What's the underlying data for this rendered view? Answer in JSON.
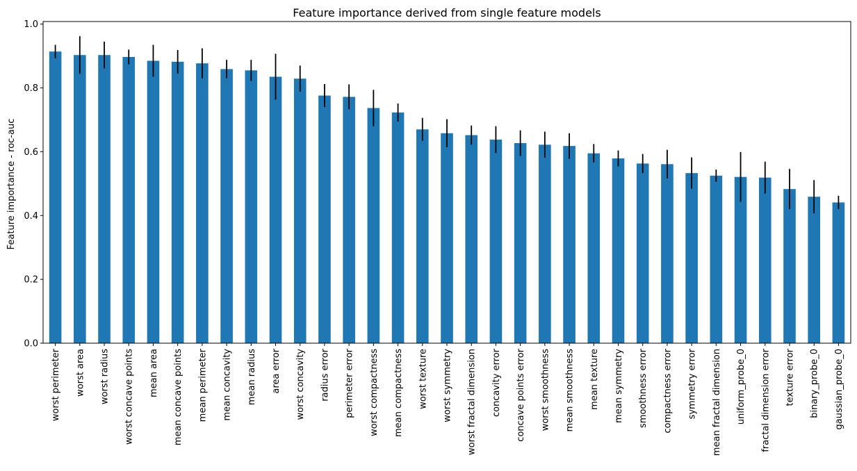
{
  "chart_data": {
    "type": "bar",
    "title": "Feature importance derived from single feature models",
    "xlabel": "",
    "ylabel": "Feature importance - roc-auc",
    "ylim": [
      0,
      1.0
    ],
    "yticks": [
      "0.0",
      "0.2",
      "0.4",
      "0.6",
      "0.8",
      "1.0"
    ],
    "ytick_values": [
      0,
      0.2,
      0.4,
      0.6,
      0.8,
      1.0
    ],
    "bar_color": "#1f77b4",
    "error_color": "#000000",
    "categories": [
      "worst perimeter",
      "worst area",
      "worst radius",
      "worst concave points",
      "mean area",
      "mean concave points",
      "mean perimeter",
      "mean concavity",
      "mean radius",
      "area error",
      "worst concavity",
      "radius error",
      "perimeter error",
      "worst compactness",
      "mean compactness",
      "worst texture",
      "worst symmetry",
      "worst fractal dimension",
      "concavity error",
      "concave points error",
      "worst smoothness",
      "mean smoothness",
      "mean texture",
      "mean symmetry",
      "smoothness error",
      "compactness error",
      "symmetry error",
      "mean fractal dimension",
      "uniform_probe_0",
      "fractal dimension error",
      "texture error",
      "binary_probe_0",
      "gaussian_probe_0"
    ],
    "values": [
      0.914,
      0.903,
      0.903,
      0.897,
      0.885,
      0.882,
      0.877,
      0.859,
      0.855,
      0.835,
      0.829,
      0.776,
      0.772,
      0.737,
      0.723,
      0.67,
      0.658,
      0.652,
      0.638,
      0.627,
      0.622,
      0.618,
      0.595,
      0.579,
      0.563,
      0.561,
      0.533,
      0.525,
      0.521,
      0.519,
      0.483,
      0.459,
      0.441
    ],
    "errors": [
      0.021,
      0.059,
      0.042,
      0.023,
      0.05,
      0.037,
      0.047,
      0.029,
      0.033,
      0.072,
      0.041,
      0.036,
      0.039,
      0.057,
      0.028,
      0.036,
      0.044,
      0.03,
      0.042,
      0.04,
      0.041,
      0.04,
      0.029,
      0.025,
      0.03,
      0.045,
      0.049,
      0.019,
      0.078,
      0.05,
      0.063,
      0.052,
      0.021
    ]
  }
}
